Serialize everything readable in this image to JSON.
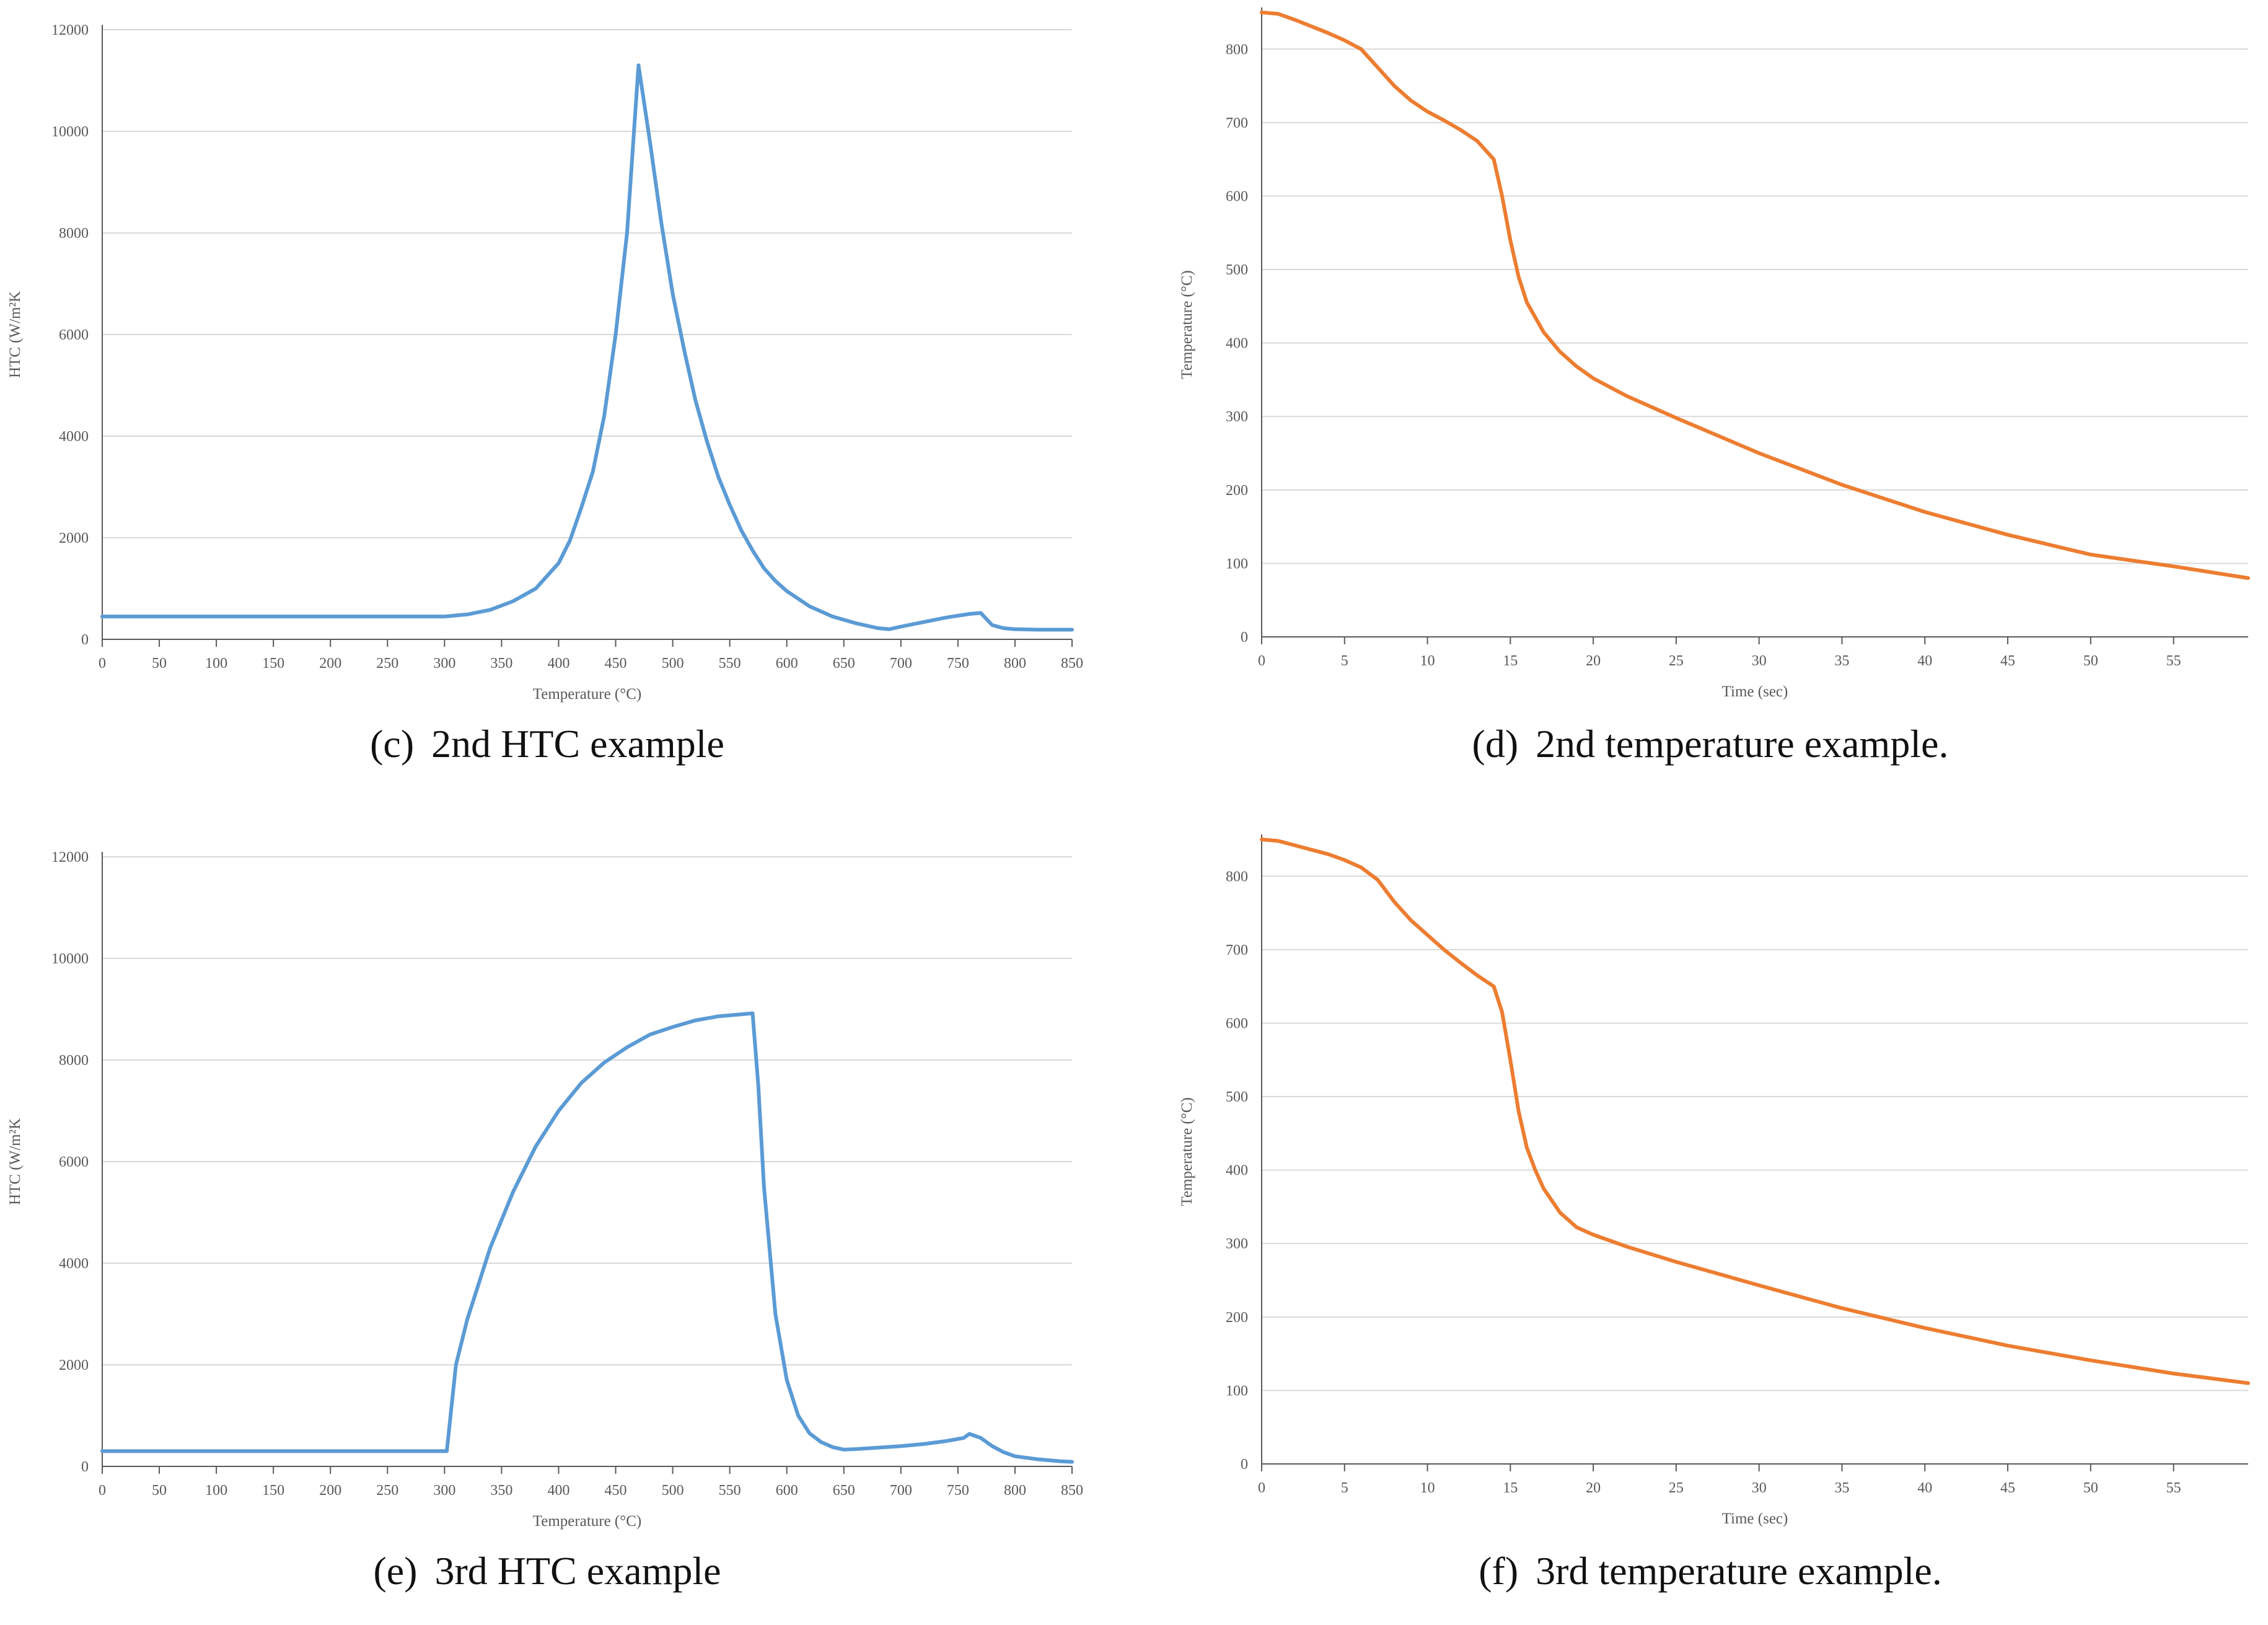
{
  "colors": {
    "htc_series": "#5b9bd5",
    "temp_series": "#ed7d31"
  },
  "chart_data": [
    {
      "id": "c",
      "type": "line",
      "caption_label": "(c)",
      "caption_text": "2nd HTC example",
      "xlabel": "Temperature (°C)",
      "ylabel": "HTC (W/m²K",
      "xlim": [
        0,
        850
      ],
      "ylim": [
        0,
        12000
      ],
      "xticks": [
        0,
        50,
        100,
        150,
        200,
        250,
        300,
        350,
        400,
        450,
        500,
        550,
        600,
        650,
        700,
        750,
        800,
        850
      ],
      "yticks": [
        0,
        2000,
        4000,
        6000,
        8000,
        10000,
        12000
      ],
      "series": [
        {
          "name": "HTC",
          "x": [
            0,
            100,
            200,
            300,
            320,
            340,
            360,
            380,
            400,
            410,
            420,
            430,
            440,
            450,
            460,
            470,
            480,
            490,
            500,
            510,
            520,
            530,
            540,
            550,
            560,
            570,
            580,
            590,
            600,
            620,
            640,
            660,
            680,
            690,
            700,
            720,
            740,
            760,
            770,
            780,
            790,
            800,
            820,
            850
          ],
          "y": [
            450,
            450,
            450,
            450,
            490,
            580,
            750,
            1000,
            1500,
            1950,
            2600,
            3300,
            4400,
            6000,
            8000,
            11300,
            9800,
            8200,
            6800,
            5700,
            4700,
            3900,
            3200,
            2650,
            2150,
            1750,
            1400,
            1150,
            950,
            650,
            450,
            320,
            220,
            200,
            250,
            340,
            430,
            500,
            520,
            280,
            220,
            200,
            190,
            190
          ]
        }
      ]
    },
    {
      "id": "d",
      "type": "line",
      "caption_label": "(d)",
      "caption_text": "2nd temperature example.",
      "xlabel": "Time (sec)",
      "ylabel": "Temperature (°C)",
      "xlim": [
        0,
        59.5
      ],
      "ylim": [
        0,
        850
      ],
      "xticks": [
        0,
        5,
        10,
        15,
        20,
        25,
        30,
        35,
        40,
        45,
        50,
        55
      ],
      "yticks": [
        0,
        100,
        200,
        300,
        400,
        500,
        600,
        700,
        800
      ],
      "series": [
        {
          "name": "Temperature",
          "x": [
            0,
            1,
            2,
            4,
            5,
            6,
            7,
            8,
            9,
            10,
            11,
            12,
            13,
            14,
            14.5,
            15,
            15.5,
            16,
            17,
            18,
            19,
            20,
            22,
            25,
            30,
            35,
            40,
            45,
            50,
            55,
            59.5
          ],
          "y": [
            850,
            848,
            840,
            822,
            812,
            800,
            775,
            750,
            730,
            715,
            703,
            690,
            675,
            650,
            600,
            540,
            490,
            455,
            415,
            388,
            368,
            352,
            328,
            298,
            250,
            207,
            170,
            139,
            112,
            96,
            80
          ]
        }
      ]
    },
    {
      "id": "e",
      "type": "line",
      "caption_label": "(e)",
      "caption_text": "3rd HTC example",
      "xlabel": "Temperature (°C)",
      "ylabel": "HTC (W/m²K",
      "xlim": [
        0,
        850
      ],
      "ylim": [
        0,
        12000
      ],
      "xticks": [
        0,
        50,
        100,
        150,
        200,
        250,
        300,
        350,
        400,
        450,
        500,
        550,
        600,
        650,
        700,
        750,
        800,
        850
      ],
      "yticks": [
        0,
        2000,
        4000,
        6000,
        8000,
        10000,
        12000
      ],
      "series": [
        {
          "name": "HTC",
          "x": [
            0,
            100,
            200,
            300,
            302,
            310,
            320,
            340,
            360,
            380,
            400,
            420,
            440,
            460,
            480,
            500,
            520,
            540,
            560,
            570,
            575,
            580,
            590,
            600,
            610,
            620,
            630,
            640,
            650,
            660,
            680,
            700,
            720,
            740,
            755,
            760,
            770,
            780,
            790,
            800,
            820,
            840,
            850
          ],
          "y": [
            300,
            300,
            300,
            300,
            300,
            2000,
            2900,
            4300,
            5400,
            6300,
            7000,
            7550,
            7950,
            8250,
            8500,
            8650,
            8780,
            8860,
            8900,
            8920,
            7500,
            5500,
            3000,
            1700,
            1000,
            650,
            480,
            380,
            330,
            340,
            370,
            400,
            440,
            500,
            560,
            640,
            560,
            400,
            280,
            200,
            140,
            100,
            90
          ]
        }
      ]
    },
    {
      "id": "f",
      "type": "line",
      "caption_label": "(f)",
      "caption_text": "3rd temperature example.",
      "xlabel": "Time (sec)",
      "ylabel": "Temperature (°C)",
      "xlim": [
        0,
        59.5
      ],
      "ylim": [
        0,
        850
      ],
      "xticks": [
        0,
        5,
        10,
        15,
        20,
        25,
        30,
        35,
        40,
        45,
        50,
        55
      ],
      "yticks": [
        0,
        100,
        200,
        300,
        400,
        500,
        600,
        700,
        800
      ],
      "series": [
        {
          "name": "Temperature",
          "x": [
            0,
            1,
            2,
            4,
            5,
            6,
            7,
            8,
            9,
            10,
            11,
            12,
            13,
            14,
            14.5,
            15,
            15.5,
            16,
            16.5,
            17,
            18,
            19,
            20,
            22,
            25,
            30,
            35,
            40,
            45,
            50,
            55,
            59.5
          ],
          "y": [
            850,
            848,
            842,
            830,
            822,
            812,
            795,
            765,
            740,
            720,
            700,
            682,
            665,
            650,
            615,
            550,
            480,
            430,
            400,
            375,
            342,
            322,
            312,
            296,
            275,
            243,
            212,
            185,
            161,
            141,
            123,
            110
          ]
        }
      ]
    }
  ]
}
